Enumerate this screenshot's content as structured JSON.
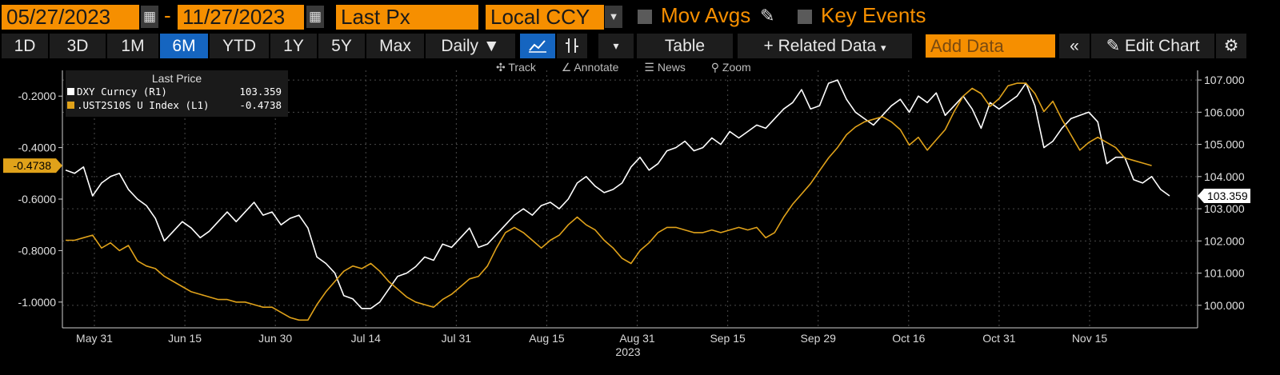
{
  "toolbar1": {
    "start_date": "05/27/2023",
    "end_date": "11/27/2023",
    "dash": "-",
    "field": "Last Px",
    "currency": "Local CCY",
    "mov_avgs": "Mov Avgs",
    "key_events": "Key Events"
  },
  "toolbar2": {
    "periods": [
      "1D",
      "3D",
      "1M",
      "6M",
      "YTD",
      "1Y",
      "5Y",
      "Max"
    ],
    "active_period": "6M",
    "frequency": "Daily ▼",
    "table": "Table",
    "related": "+ Related Data",
    "add_data_placeholder": "Add Data",
    "edit_chart": "Edit Chart"
  },
  "subtools": [
    "Track",
    "Annotate",
    "News",
    "Zoom"
  ],
  "colors": {
    "dxy": "#ffffff",
    "ust": "#e0a21a",
    "accent": "#f68f00",
    "active": "#1565c0"
  },
  "legend": {
    "header": "Last Price",
    "items": [
      {
        "name": "DXY Curncy  (R1)",
        "value": "103.359",
        "color": "#ffffff"
      },
      {
        "name": ".UST2S10S U Index  (L1)",
        "value": "-0.4738",
        "color": "#e0a21a"
      }
    ]
  },
  "chart_data": {
    "type": "line",
    "x_tick_labels": [
      "May 31",
      "Jun 15",
      "Jun 30",
      "Jul 14",
      "Jul 31",
      "Aug 15",
      "Aug 31",
      "Sep 15",
      "Sep 29",
      "Oct 16",
      "Oct 31",
      "Nov 15"
    ],
    "year_label": "2023",
    "y_left": {
      "ylim": [
        -1.1,
        -0.1
      ],
      "ticks": [
        "-0.2000",
        "-0.4000",
        "-0.6000",
        "-0.8000",
        "-1.0000"
      ],
      "tick_values": [
        -0.2,
        -0.4,
        -0.6,
        -0.8,
        -1.0
      ]
    },
    "y_right": {
      "ylim": [
        99.3,
        107.3
      ],
      "ticks": [
        "107.000",
        "106.000",
        "105.000",
        "104.000",
        "103.000",
        "102.000",
        "101.000",
        "100.000"
      ],
      "tick_values": [
        107,
        106,
        105,
        104,
        103,
        102,
        101,
        100
      ]
    },
    "last_labels": {
      "left": "-0.4738",
      "right": "103.359"
    },
    "grid": true,
    "series": [
      {
        "name": "DXY Curncy (R1)",
        "axis": "right",
        "values": [
          104.2,
          104.1,
          104.3,
          103.4,
          103.8,
          104.0,
          104.1,
          103.6,
          103.3,
          103.1,
          102.7,
          102.0,
          102.3,
          102.6,
          102.4,
          102.1,
          102.3,
          102.6,
          102.9,
          102.6,
          102.9,
          103.2,
          102.8,
          102.9,
          102.5,
          102.7,
          102.8,
          102.4,
          101.5,
          101.3,
          101.0,
          100.3,
          100.2,
          99.9,
          99.9,
          100.1,
          100.5,
          100.9,
          101.0,
          101.2,
          101.5,
          101.4,
          101.9,
          101.8,
          102.1,
          102.4,
          101.8,
          101.9,
          102.2,
          102.5,
          102.8,
          103.0,
          102.8,
          103.1,
          103.2,
          103.0,
          103.3,
          103.8,
          104.0,
          103.7,
          103.5,
          103.6,
          103.8,
          104.3,
          104.6,
          104.2,
          104.4,
          104.8,
          104.9,
          105.1,
          104.8,
          104.9,
          105.2,
          105.0,
          105.4,
          105.2,
          105.4,
          105.6,
          105.5,
          105.8,
          106.1,
          106.3,
          106.7,
          106.1,
          106.2,
          106.9,
          107.0,
          106.4,
          106.0,
          105.8,
          105.6,
          105.9,
          106.2,
          106.4,
          106.0,
          106.5,
          106.3,
          106.6,
          105.9,
          106.2,
          106.5,
          106.1,
          105.5,
          106.3,
          106.1,
          106.3,
          106.5,
          106.9,
          106.2,
          104.9,
          105.1,
          105.5,
          105.8,
          105.9,
          106.0,
          105.7,
          104.4,
          104.6,
          104.6,
          103.9,
          103.8,
          104.0,
          103.6,
          103.4
        ],
        "color": "#ffffff"
      },
      {
        "name": ".UST2S10S U Index (L1)",
        "axis": "left",
        "values": [
          -0.76,
          -0.76,
          -0.75,
          -0.74,
          -0.79,
          -0.77,
          -0.8,
          -0.78,
          -0.84,
          -0.86,
          -0.87,
          -0.9,
          -0.92,
          -0.94,
          -0.96,
          -0.97,
          -0.98,
          -0.99,
          -0.99,
          -1.0,
          -1.0,
          -1.01,
          -1.02,
          -1.02,
          -1.04,
          -1.06,
          -1.07,
          -1.07,
          -1.01,
          -0.96,
          -0.92,
          -0.88,
          -0.86,
          -0.87,
          -0.85,
          -0.88,
          -0.92,
          -0.95,
          -0.98,
          -1.0,
          -1.01,
          -1.02,
          -0.99,
          -0.97,
          -0.94,
          -0.91,
          -0.9,
          -0.86,
          -0.79,
          -0.73,
          -0.71,
          -0.73,
          -0.76,
          -0.79,
          -0.76,
          -0.74,
          -0.7,
          -0.67,
          -0.7,
          -0.72,
          -0.76,
          -0.79,
          -0.83,
          -0.85,
          -0.8,
          -0.77,
          -0.73,
          -0.71,
          -0.71,
          -0.72,
          -0.73,
          -0.73,
          -0.72,
          -0.73,
          -0.72,
          -0.71,
          -0.72,
          -0.71,
          -0.75,
          -0.73,
          -0.67,
          -0.62,
          -0.58,
          -0.54,
          -0.49,
          -0.44,
          -0.4,
          -0.35,
          -0.32,
          -0.3,
          -0.29,
          -0.28,
          -0.3,
          -0.33,
          -0.39,
          -0.36,
          -0.41,
          -0.37,
          -0.33,
          -0.26,
          -0.2,
          -0.17,
          -0.19,
          -0.24,
          -0.21,
          -0.16,
          -0.15,
          -0.15,
          -0.19,
          -0.26,
          -0.22,
          -0.29,
          -0.35,
          -0.41,
          -0.38,
          -0.36,
          -0.38,
          -0.4,
          -0.44,
          -0.45,
          -0.46,
          -0.47
        ],
        "color": "#e0a21a"
      }
    ]
  }
}
